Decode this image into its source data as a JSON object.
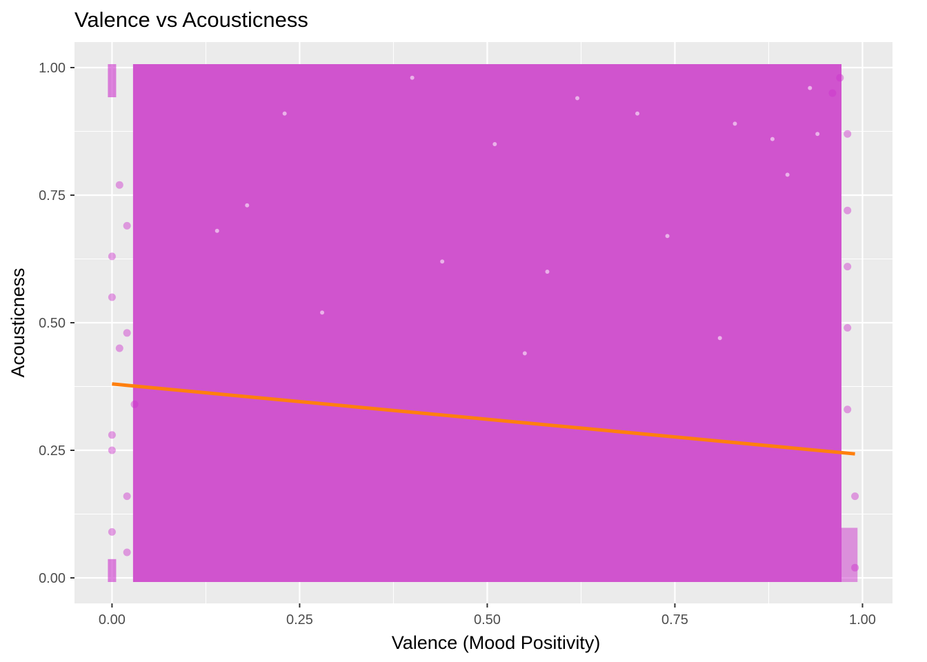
{
  "chart_data": {
    "type": "scatter",
    "title": "Valence vs Acousticness",
    "xlabel": "Valence (Mood Positivity)",
    "ylabel": "Acousticness",
    "xlim": [
      -0.05,
      1.04
    ],
    "ylim": [
      -0.05,
      1.05
    ],
    "x_ticks": [
      0,
      0.25,
      0.5,
      0.75,
      1
    ],
    "x_tick_labels": [
      "0.00",
      "0.25",
      "0.50",
      "0.75",
      "1.00"
    ],
    "y_ticks": [
      0,
      0.25,
      0.5,
      0.75,
      1
    ],
    "y_tick_labels": [
      "0.00",
      "0.25",
      "0.50",
      "0.75",
      "1.00"
    ],
    "grid": true,
    "legend": "none",
    "point_color": "#CC33CC",
    "point_opacity": 0.45,
    "point_density": "saturated fill over valence 0.03 to 0.97 for all acousticness values; sparser points near valence 0.00 and near 0.98 to 0.99",
    "trend_line": {
      "type": "linear",
      "color": "#FF7F0E",
      "points": [
        {
          "x": 0.0,
          "y": 0.38
        },
        {
          "x": 0.99,
          "y": 0.243
        }
      ]
    },
    "sparse_samples": [
      {
        "x": 0.0,
        "y": 0.63
      },
      {
        "x": 0.0,
        "y": 0.55
      },
      {
        "x": 0.0,
        "y": 0.28
      },
      {
        "x": 0.0,
        "y": 0.25
      },
      {
        "x": 0.0,
        "y": 0.09
      },
      {
        "x": 0.01,
        "y": 0.77
      },
      {
        "x": 0.01,
        "y": 0.45
      },
      {
        "x": 0.02,
        "y": 0.69
      },
      {
        "x": 0.02,
        "y": 0.48
      },
      {
        "x": 0.02,
        "y": 0.16
      },
      {
        "x": 0.02,
        "y": 0.05
      },
      {
        "x": 0.03,
        "y": 0.34
      },
      {
        "x": 0.98,
        "y": 0.87
      },
      {
        "x": 0.98,
        "y": 0.72
      },
      {
        "x": 0.98,
        "y": 0.61
      },
      {
        "x": 0.98,
        "y": 0.49
      },
      {
        "x": 0.98,
        "y": 0.33
      },
      {
        "x": 0.99,
        "y": 0.16
      },
      {
        "x": 0.99,
        "y": 0.02
      },
      {
        "x": 0.97,
        "y": 0.98
      },
      {
        "x": 0.96,
        "y": 0.95
      }
    ],
    "density_gaps": [
      {
        "x": 0.4,
        "y": 0.98
      },
      {
        "x": 0.62,
        "y": 0.94
      },
      {
        "x": 0.7,
        "y": 0.91
      },
      {
        "x": 0.83,
        "y": 0.89
      },
      {
        "x": 0.88,
        "y": 0.86
      },
      {
        "x": 0.93,
        "y": 0.96
      },
      {
        "x": 0.94,
        "y": 0.87
      },
      {
        "x": 0.9,
        "y": 0.79
      },
      {
        "x": 0.18,
        "y": 0.73
      },
      {
        "x": 0.44,
        "y": 0.62
      },
      {
        "x": 0.58,
        "y": 0.6
      },
      {
        "x": 0.74,
        "y": 0.67
      },
      {
        "x": 0.28,
        "y": 0.52
      },
      {
        "x": 0.55,
        "y": 0.44
      },
      {
        "x": 0.81,
        "y": 0.47
      },
      {
        "x": 0.14,
        "y": 0.68
      },
      {
        "x": 0.23,
        "y": 0.91
      },
      {
        "x": 0.51,
        "y": 0.85
      }
    ]
  }
}
